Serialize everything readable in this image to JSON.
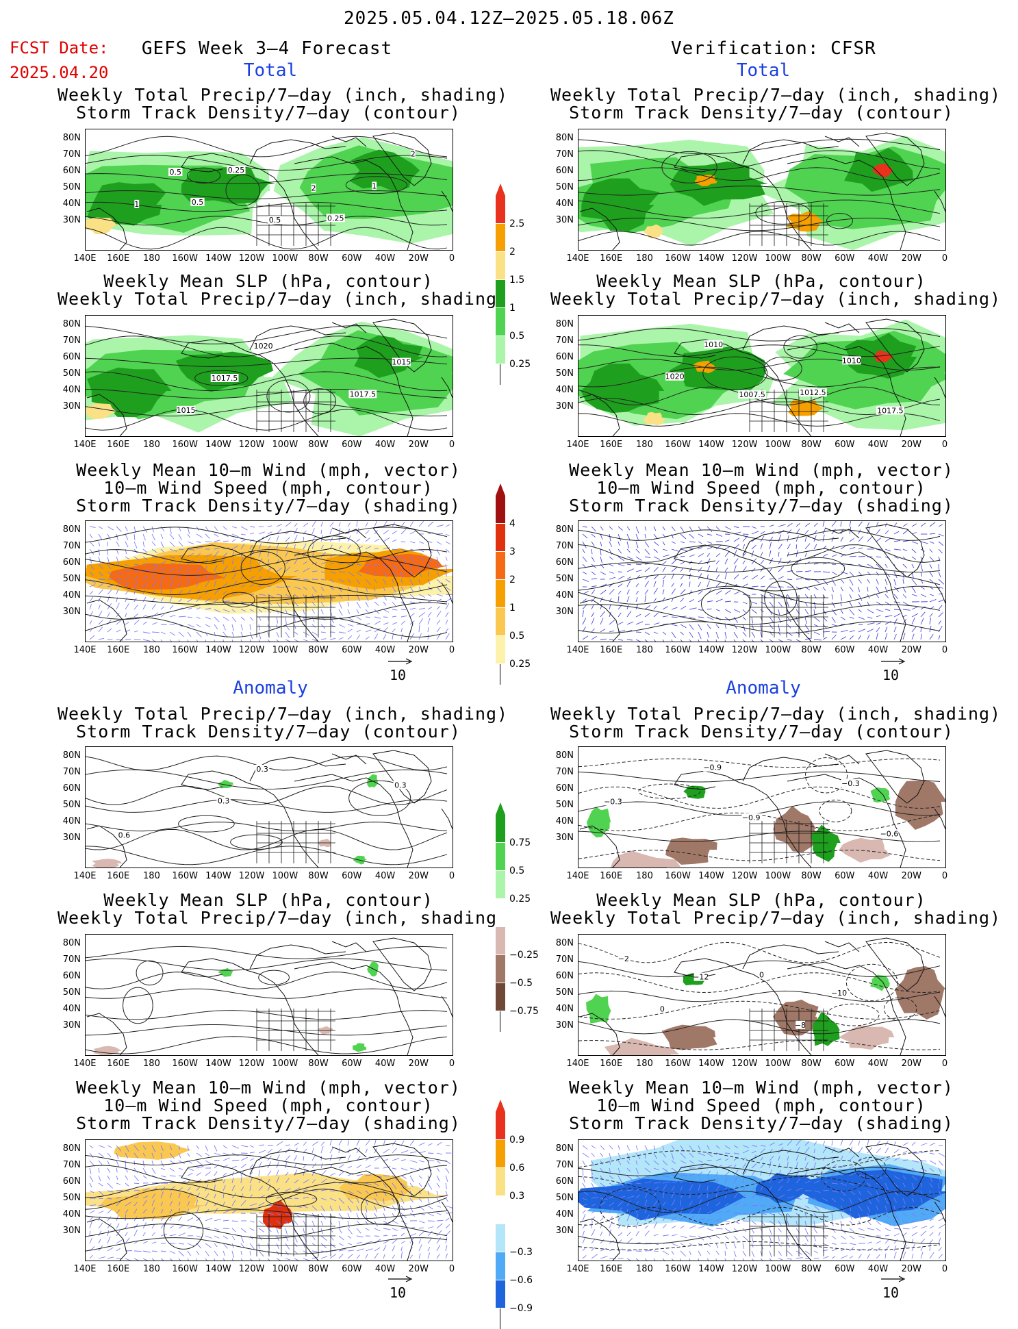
{
  "header": {
    "date_range": "2025.05.04.12Z–2025.05.18.06Z",
    "fcst_label": "FCST Date:",
    "fcst_date": "2025.04.20",
    "left_title": "GEFS Week 3–4 Forecast",
    "right_title": "Verification: CFSR",
    "total": "Total",
    "anomaly": "Anomaly"
  },
  "titles": {
    "precip_track": [
      "Weekly Total Precip/7–day (inch, shading)",
      "Storm Track Density/7–day (contour)"
    ],
    "slp_precip": [
      "Weekly Mean SLP (hPa, contour)",
      "Weekly Total Precip/7–day (inch, shading)"
    ],
    "wind_track": [
      "Weekly Mean 10–m Wind (mph, vector)",
      "10–m Wind Speed (mph, contour)",
      "Storm Track Density/7–day (shading)"
    ]
  },
  "axes": {
    "lat_labels": [
      "80N",
      "70N",
      "60N",
      "50N",
      "40N",
      "30N"
    ],
    "lon_labels": [
      "140E",
      "160E",
      "180",
      "160W",
      "140W",
      "120W",
      "100W",
      "80W",
      "60W",
      "40W",
      "20W",
      "0"
    ]
  },
  "vector_ref": "10",
  "colorbars": {
    "precip_total": {
      "labels": [
        "2.5",
        "2",
        "1.5",
        "1",
        "0.5",
        "0.25"
      ],
      "colors": [
        "#e8321e",
        "#f5a000",
        "#fbe186",
        "#1ea01e",
        "#50d350",
        "#aaf5aa"
      ]
    },
    "track_total": {
      "labels": [
        "4",
        "3",
        "2",
        "1",
        "0.5",
        "0.25"
      ],
      "colors": [
        "#a01010",
        "#e0300e",
        "#f56a14",
        "#f5a000",
        "#fac850",
        "#fdf2aa"
      ]
    },
    "precip_anom": {
      "labels": [
        "0.75",
        "0.5",
        "0.25",
        "−0.25",
        "−0.5",
        "−0.75"
      ],
      "colors": [
        "#1ea01e",
        "#50d350",
        "#aaf5aa",
        "#ffffff",
        "#d8b8b0",
        "#a07868",
        "#704838"
      ]
    },
    "track_anom": {
      "labels": [
        "0.9",
        "0.6",
        "0.3",
        "−0.3",
        "−0.6",
        "−0.9"
      ],
      "colors": [
        "#e8321e",
        "#f5a000",
        "#fbe186",
        "#ffffff",
        "#b4e6fa",
        "#50aaf5",
        "#1e64dc"
      ]
    }
  },
  "contour_labels": {
    "left_precip_total": [
      "0.5",
      "2",
      "1",
      "0.5",
      "2",
      "0.25",
      "1",
      "0.5",
      "0.25"
    ],
    "left_slp_total": [
      "1020",
      "1015",
      "1017.5",
      "1017.5",
      "1015"
    ],
    "right_slp_total": [
      "1007.5",
      "1017.5",
      "1010",
      "1010",
      "1020",
      "1012.5"
    ],
    "left_precip_anom": [
      "0.6",
      "0.3",
      "0.3",
      "0.3"
    ],
    "right_precip_anom": [
      "−0.3",
      "−0.9",
      "−0.6",
      "−0.9",
      "−0.3"
    ],
    "right_slp_anom": [
      "−12",
      "−10",
      "0",
      "−8",
      "−2",
      "0"
    ]
  }
}
